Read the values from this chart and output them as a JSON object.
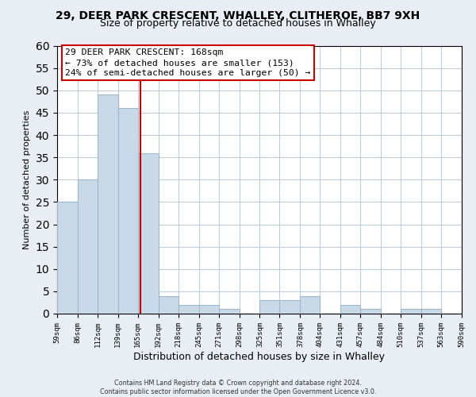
{
  "title": "29, DEER PARK CRESCENT, WHALLEY, CLITHEROE, BB7 9XH",
  "subtitle": "Size of property relative to detached houses in Whalley",
  "xlabel": "Distribution of detached houses by size in Whalley",
  "ylabel": "Number of detached properties",
  "bar_edges": [
    59,
    86,
    112,
    139,
    165,
    192,
    218,
    245,
    271,
    298,
    325,
    351,
    378,
    404,
    431,
    457,
    484,
    510,
    537,
    563,
    590
  ],
  "bar_heights": [
    25,
    30,
    49,
    46,
    36,
    4,
    2,
    2,
    1,
    0,
    3,
    3,
    4,
    0,
    2,
    1,
    0,
    1,
    1,
    0
  ],
  "bar_color": "#c9d9e8",
  "bar_edge_color": "#a0b8cc",
  "property_line_x": 168,
  "property_line_color": "#cc0000",
  "annotation_box_facecolor": "#ffffff",
  "annotation_box_edgecolor": "#cc0000",
  "annotation_line1": "29 DEER PARK CRESCENT: 168sqm",
  "annotation_line2": "← 73% of detached houses are smaller (153)",
  "annotation_line3": "24% of semi-detached houses are larger (50) →",
  "ylim": [
    0,
    60
  ],
  "xlim": [
    59,
    590
  ],
  "tick_labels": [
    "59sqm",
    "86sqm",
    "112sqm",
    "139sqm",
    "165sqm",
    "192sqm",
    "218sqm",
    "245sqm",
    "271sqm",
    "298sqm",
    "325sqm",
    "351sqm",
    "378sqm",
    "404sqm",
    "431sqm",
    "457sqm",
    "484sqm",
    "510sqm",
    "537sqm",
    "563sqm",
    "590sqm"
  ],
  "footer_line1": "Contains HM Land Registry data © Crown copyright and database right 2024.",
  "footer_line2": "Contains public sector information licensed under the Open Government Licence v3.0.",
  "background_color": "#e8eef4",
  "plot_background_color": "#ffffff",
  "grid_color": "#c0ccd8"
}
